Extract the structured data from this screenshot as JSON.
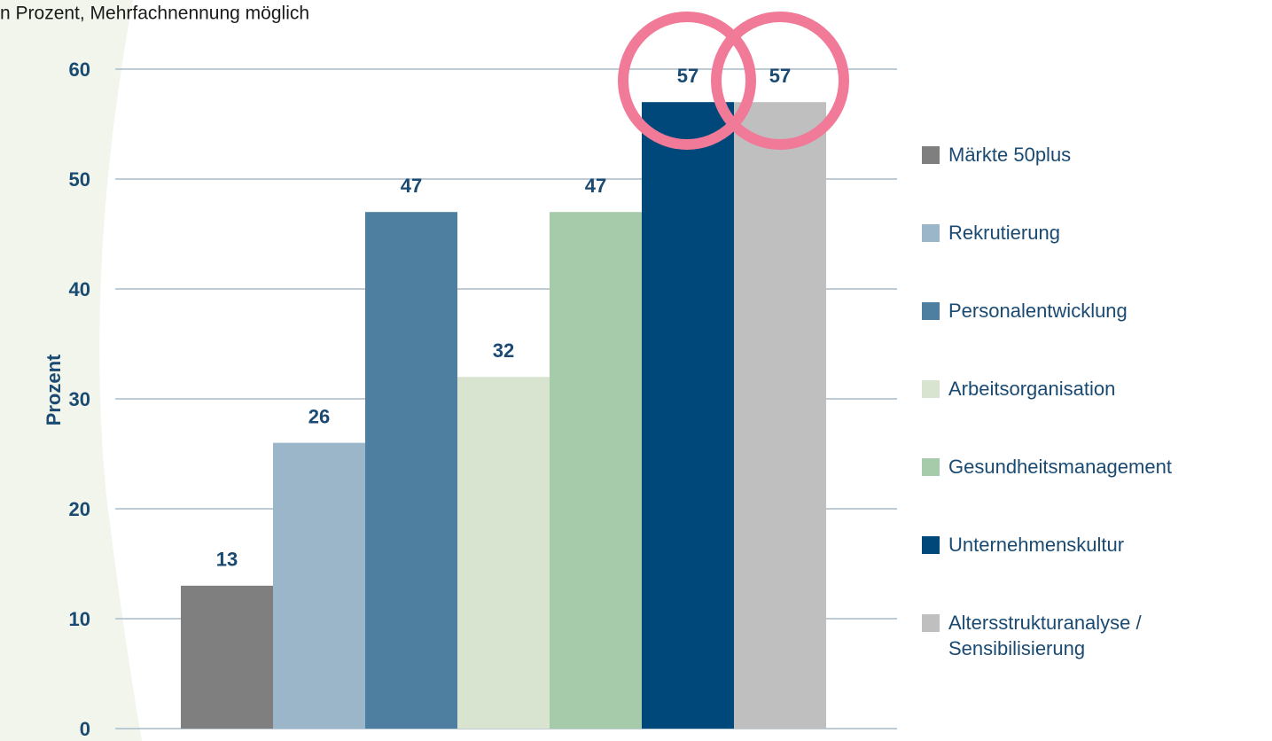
{
  "chart_data": {
    "type": "bar",
    "subtitle": "n Prozent, Mehrfachnennung möglich",
    "y_label": "Prozent",
    "series": [
      {
        "name": "Märkte 50plus",
        "color": "#7f7f7f",
        "values": [
          13
        ]
      },
      {
        "name": "Rekrutierung",
        "color": "#9bb5c9",
        "values": [
          26
        ]
      },
      {
        "name": "Personalentwicklung",
        "color": "#4e7fa0",
        "values": [
          47
        ]
      },
      {
        "name": "Arbeitsorganisation",
        "color": "#d8e4cf",
        "values": [
          32
        ]
      },
      {
        "name": "Gesundheitsmanagement",
        "color": "#a6cbaa",
        "values": [
          47
        ]
      },
      {
        "name": "Unternehmenskultur",
        "color": "#00477a",
        "values": [
          57
        ]
      },
      {
        "name": "Altersstrukturanalyse / Sensibilisierung",
        "color": "#bfbfbf",
        "values": [
          57
        ]
      }
    ],
    "ylim": [
      0,
      60
    ],
    "yticks": [
      0,
      10,
      20,
      30,
      40,
      50,
      60
    ],
    "grid": true,
    "legend": "right"
  }
}
